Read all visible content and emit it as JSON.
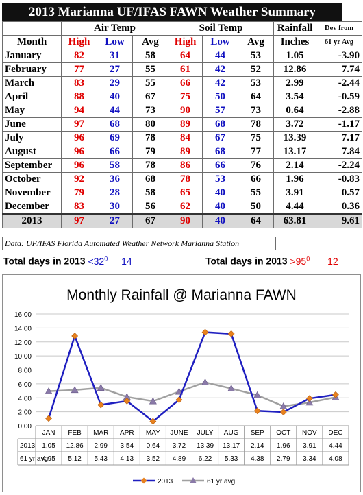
{
  "title": "2013 Marianna UF/IFAS FAWN Weather Summary",
  "headers": {
    "month": "Month",
    "air_temp": "Air Temp",
    "soil_temp": "Soil Temp",
    "rainfall_top": "Rainfall",
    "rainfall_bottom": "Inches",
    "dev_top": "Dev from",
    "dev_bottom": "61 yr Avg",
    "high": "High",
    "low": "Low",
    "avg": "Avg"
  },
  "rows": [
    {
      "month": "January",
      "air_high": "82",
      "air_low": "31",
      "air_avg": "58",
      "soil_high": "64",
      "soil_low": "44",
      "soil_avg": "53",
      "rain": "1.05",
      "dev": "-3.90"
    },
    {
      "month": "February",
      "air_high": "77",
      "air_low": "27",
      "air_avg": "55",
      "soil_high": "61",
      "soil_low": "42",
      "soil_avg": "52",
      "rain": "12.86",
      "dev": "7.74"
    },
    {
      "month": "March",
      "air_high": "83",
      "air_low": "29",
      "air_avg": "55",
      "soil_high": "66",
      "soil_low": "42",
      "soil_avg": "53",
      "rain": "2.99",
      "dev": "-2.44"
    },
    {
      "month": "April",
      "air_high": "88",
      "air_low": "40",
      "air_avg": "67",
      "soil_high": "75",
      "soil_low": "50",
      "soil_avg": "64",
      "rain": "3.54",
      "dev": "-0.59"
    },
    {
      "month": "May",
      "air_high": "94",
      "air_low": "44",
      "air_avg": "73",
      "soil_high": "90",
      "soil_low": "57",
      "soil_avg": "73",
      "rain": "0.64",
      "dev": "-2.88"
    },
    {
      "month": "June",
      "air_high": "97",
      "air_low": "68",
      "air_avg": "80",
      "soil_high": "89",
      "soil_low": "68",
      "soil_avg": "78",
      "rain": "3.72",
      "dev": "-1.17"
    },
    {
      "month": "July",
      "air_high": "96",
      "air_low": "69",
      "air_avg": "78",
      "soil_high": "84",
      "soil_low": "67",
      "soil_avg": "75",
      "rain": "13.39",
      "dev": "7.17"
    },
    {
      "month": "August",
      "air_high": "96",
      "air_low": "66",
      "air_avg": "79",
      "soil_high": "89",
      "soil_low": "68",
      "soil_avg": "77",
      "rain": "13.17",
      "dev": "7.84"
    },
    {
      "month": "September",
      "air_high": "96",
      "air_low": "58",
      "air_avg": "78",
      "soil_high": "86",
      "soil_low": "66",
      "soil_avg": "76",
      "rain": "2.14",
      "dev": "-2.24"
    },
    {
      "month": "October",
      "air_high": "92",
      "air_low": "36",
      "air_avg": "68",
      "soil_high": "78",
      "soil_low": "53",
      "soil_avg": "66",
      "rain": "1.96",
      "dev": "-0.83"
    },
    {
      "month": "November",
      "air_high": "79",
      "air_low": "28",
      "air_avg": "58",
      "soil_high": "65",
      "soil_low": "40",
      "soil_avg": "55",
      "rain": "3.91",
      "dev": "0.57"
    },
    {
      "month": "December",
      "air_high": "83",
      "air_low": "30",
      "air_avg": "56",
      "soil_high": "62",
      "soil_low": "40",
      "soil_avg": "50",
      "rain": "4.44",
      "dev": "0.36"
    }
  ],
  "total": {
    "label": "2013",
    "air_high": "97",
    "air_low": "27",
    "air_avg": "67",
    "soil_high": "90",
    "soil_low": "40",
    "soil_avg": "64",
    "rain": "63.81",
    "dev": "9.61"
  },
  "data_note": "Data:  UF/IFAS Florida Automated Weather Network Marianna Station",
  "days_below": {
    "label": "Total days in 2013",
    "threshold": "<32",
    "sup": "0",
    "value": "14"
  },
  "days_above": {
    "label": "Total days in 2013",
    "threshold": ">95",
    "sup": "0",
    "value": "12"
  },
  "colors": {
    "series_2013": "#1f1fc0",
    "series_avg": "#a0a0a0",
    "marker_2013": "#e8821e",
    "marker_avg": "#8a7aa8",
    "high_text": "#e00000",
    "low_text": "#1010c0"
  },
  "chart_data": {
    "type": "line",
    "title": "Monthly Rainfall @ Marianna FAWN",
    "categories": [
      "JAN",
      "FEB",
      "MAR",
      "APR",
      "MAY",
      "JUNE",
      "JULY",
      "AUG",
      "SEP",
      "OCT",
      "NOV",
      "DEC"
    ],
    "series": [
      {
        "name": "2013",
        "values": [
          1.05,
          12.86,
          2.99,
          3.54,
          0.64,
          3.72,
          13.39,
          13.17,
          2.14,
          1.96,
          3.91,
          4.44
        ],
        "labels": [
          "1.05",
          "12.86",
          "2.99",
          "3.54",
          "0.64",
          "3.72",
          "13.39",
          "13.17",
          "2.14",
          "1.96",
          "3.91",
          "4.44"
        ]
      },
      {
        "name": "61 yr avg",
        "values": [
          4.95,
          5.12,
          5.43,
          4.13,
          3.52,
          4.89,
          6.22,
          5.33,
          4.38,
          2.79,
          3.34,
          4.08
        ],
        "labels": [
          "4.95",
          "5.12",
          "5.43",
          "4.13",
          "3.52",
          "4.89",
          "6.22",
          "5.33",
          "4.38",
          "2.79",
          "3.34",
          "4.08"
        ]
      }
    ],
    "ylim": [
      0,
      16
    ],
    "yticks": [
      "0.00",
      "2.00",
      "4.00",
      "6.00",
      "8.00",
      "10.00",
      "12.00",
      "14.00",
      "16.00"
    ],
    "grid": true,
    "legend": "bottom",
    "data_table": true
  }
}
